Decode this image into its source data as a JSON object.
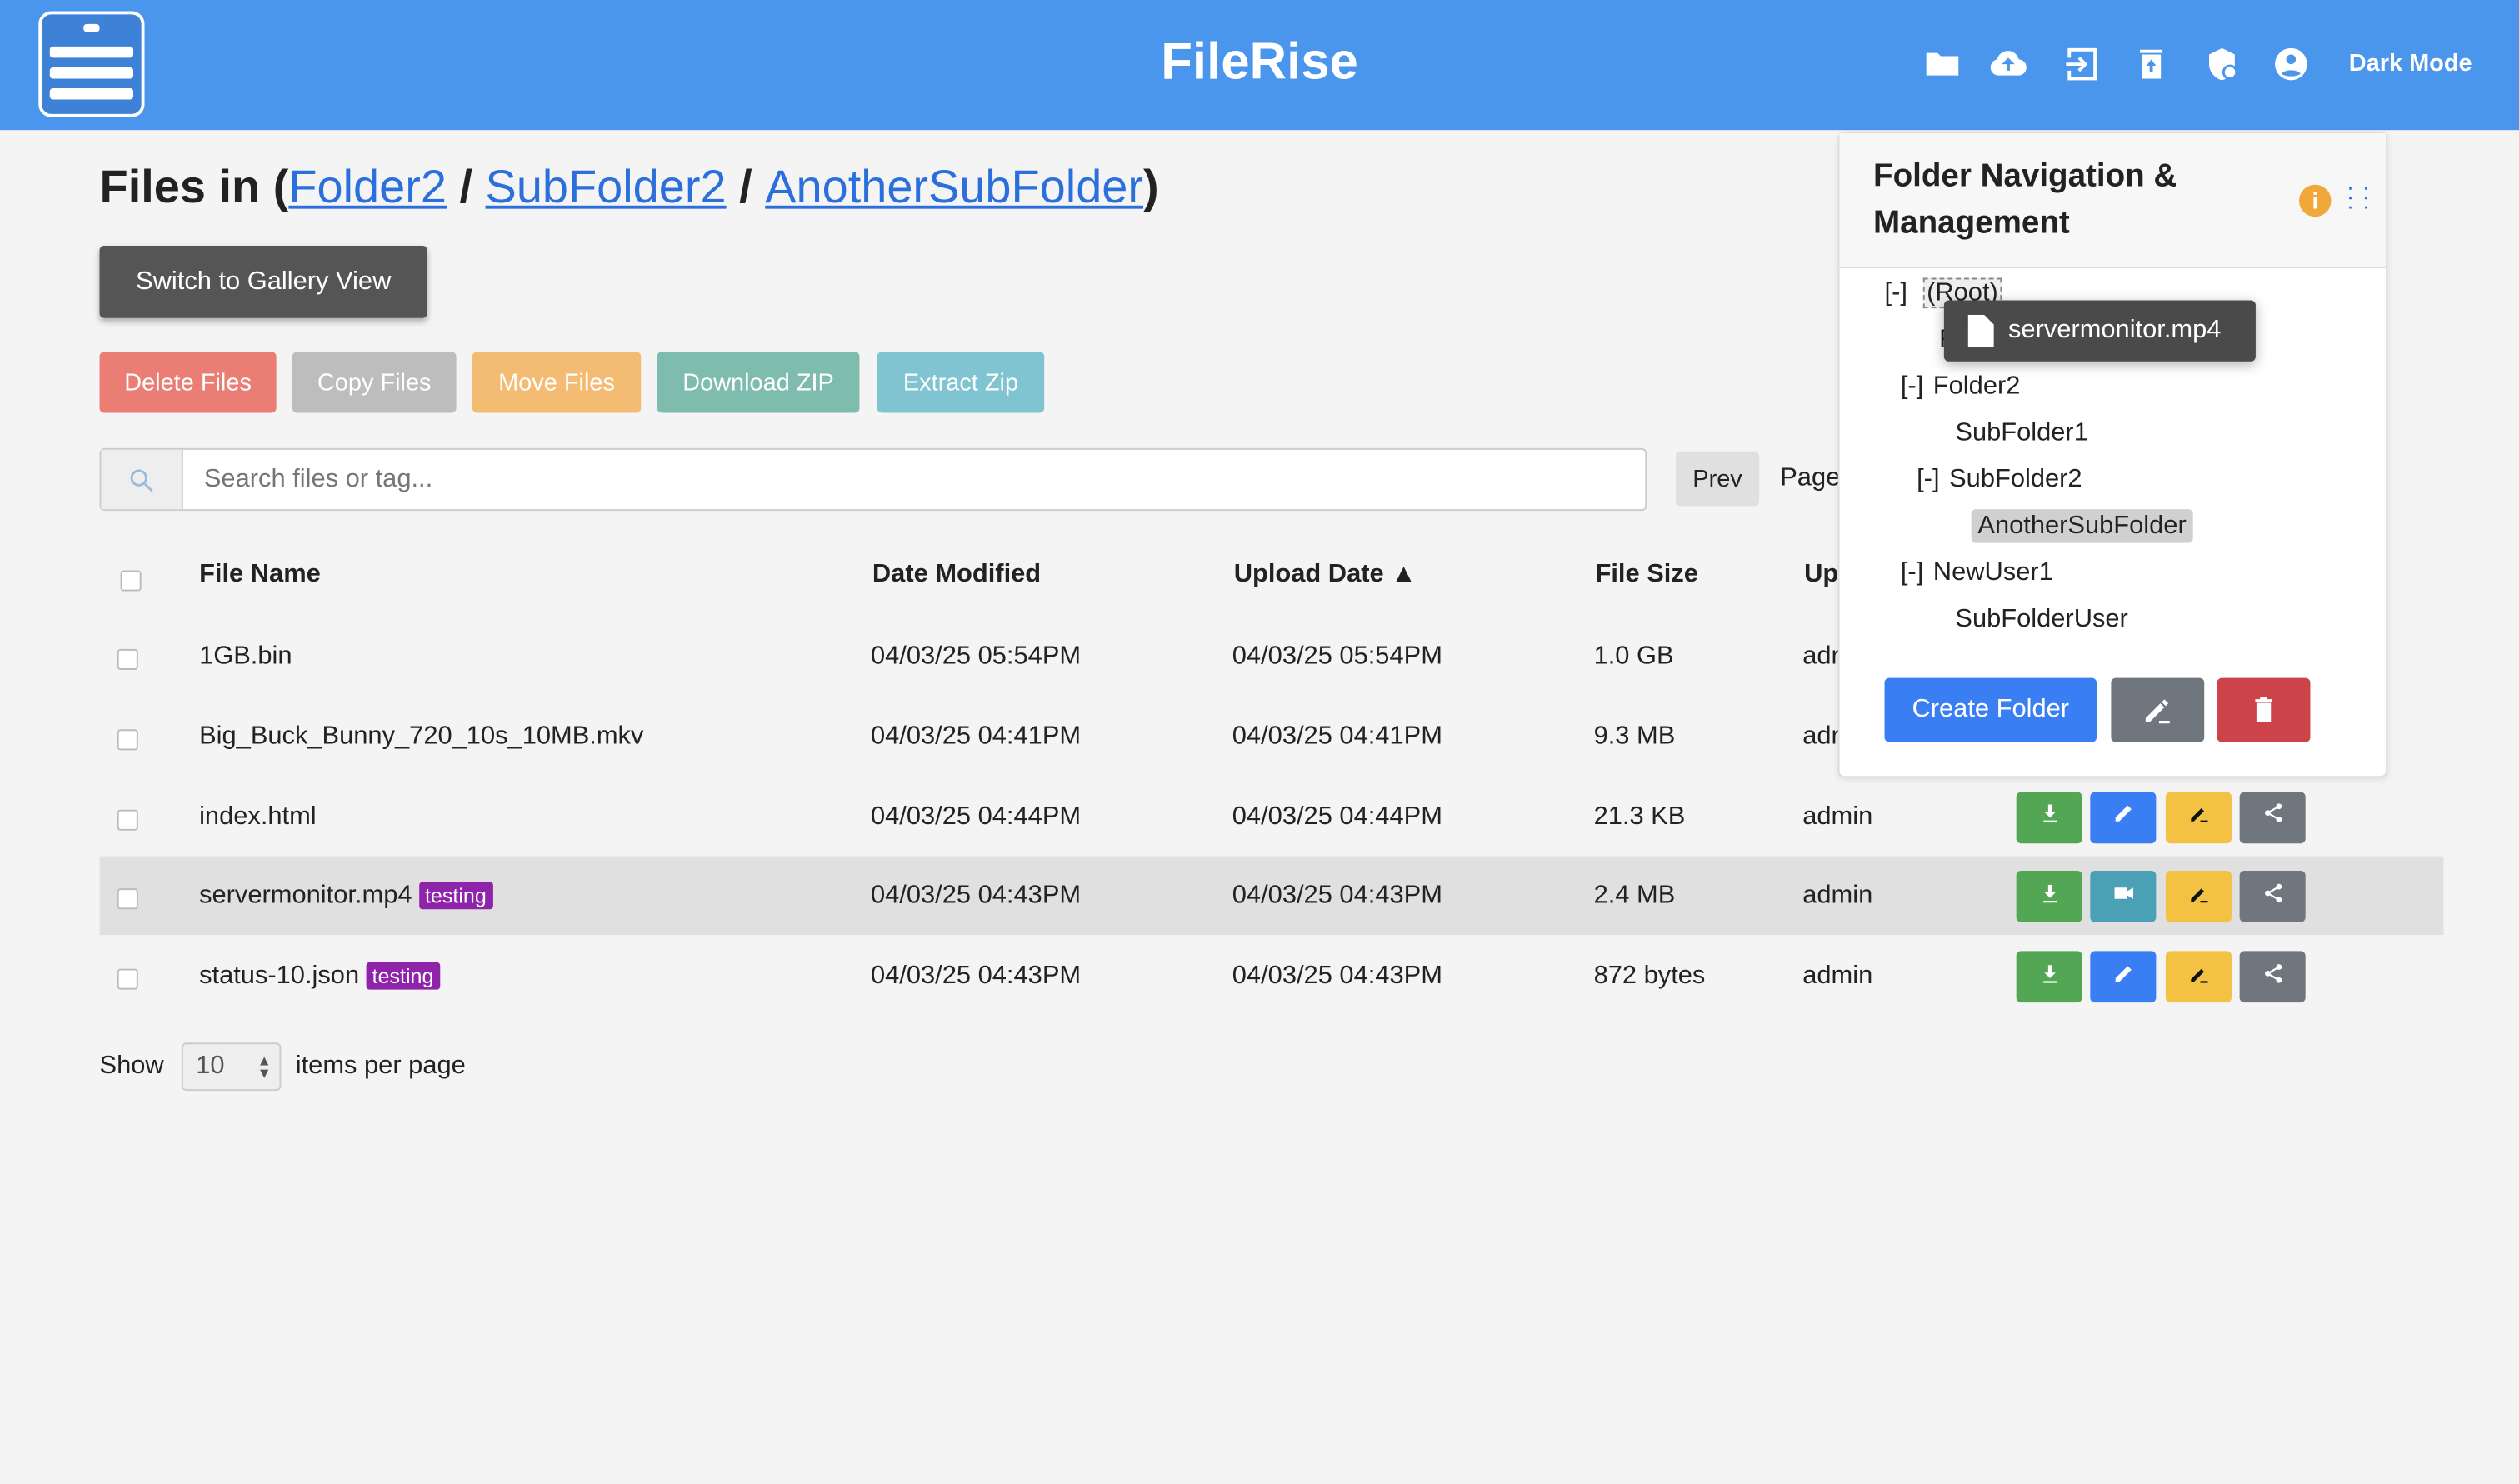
{
  "app": {
    "title": "FileRise",
    "dark_mode": "Dark Mode",
    "accent": "#4a96ec"
  },
  "header_icons": [
    "folder-icon",
    "cloud-upload-icon",
    "logout-icon",
    "restore-trash-icon",
    "admin-shield-icon",
    "user-account-icon"
  ],
  "page": {
    "prefix": "Files in (",
    "crumbs": [
      "Folder2",
      "SubFolder2",
      "AnotherSubFolder"
    ],
    "sep": " / ",
    "suffix": ")"
  },
  "gallery_button": "Switch to Gallery View",
  "actions": {
    "delete": "Delete Files",
    "copy": "Copy Files",
    "move": "Move Files",
    "zip": "Download ZIP",
    "extract": "Extract Zip"
  },
  "search": {
    "placeholder": "Search files or tag..."
  },
  "pagination": {
    "prev": "Prev",
    "page": "Page"
  },
  "table": {
    "headers": {
      "name": "File Name",
      "modified": "Date Modified",
      "uploaded": "Upload Date ▲",
      "size": "File Size",
      "uploader": "Up"
    },
    "rows": [
      {
        "name": "1GB.bin",
        "tag": "",
        "modified": "04/03/25 05:54PM",
        "uploaded": "04/03/25 05:54PM",
        "size": "1.0 GB",
        "uploader": "adr",
        "second": "edit"
      },
      {
        "name": "Big_Buck_Bunny_720_10s_10MB.mkv",
        "tag": "",
        "modified": "04/03/25 04:41PM",
        "uploaded": "04/03/25 04:41PM",
        "size": "9.3 MB",
        "uploader": "adr",
        "second": "edit"
      },
      {
        "name": "index.html",
        "tag": "",
        "modified": "04/03/25 04:44PM",
        "uploaded": "04/03/25 04:44PM",
        "size": "21.3 KB",
        "uploader": "admin",
        "second": "edit"
      },
      {
        "name": "servermonitor.mp4",
        "tag": "testing",
        "modified": "04/03/25 04:43PM",
        "uploaded": "04/03/25 04:43PM",
        "size": "2.4 MB",
        "uploader": "admin",
        "second": "video"
      },
      {
        "name": "status-10.json",
        "tag": "testing",
        "modified": "04/03/25 04:43PM",
        "uploaded": "04/03/25 04:43PM",
        "size": "872 bytes",
        "uploader": "admin",
        "second": "edit"
      }
    ]
  },
  "per_page": {
    "show": "Show",
    "value": "10",
    "suffix": "items per page"
  },
  "folder_panel": {
    "title_line1": "Folder Navigation &",
    "title_line2": "Management",
    "toggle": "[-]",
    "tree": [
      {
        "label": "(Root)",
        "toggle": "[-]"
      },
      {
        "label": "Folder1",
        "toggle": ""
      },
      {
        "label": "Folder2",
        "toggle": "[-]"
      },
      {
        "label": "SubFolder1",
        "toggle": ""
      },
      {
        "label": "SubFolder2",
        "toggle": "[-]"
      },
      {
        "label": "AnotherSubFolder",
        "toggle": "",
        "selected": true
      },
      {
        "label": "NewUser1",
        "toggle": "[-]"
      },
      {
        "label": "SubFolderUser",
        "toggle": ""
      }
    ],
    "create": "Create Folder"
  },
  "drag_ghost": "servermonitor.mp4"
}
